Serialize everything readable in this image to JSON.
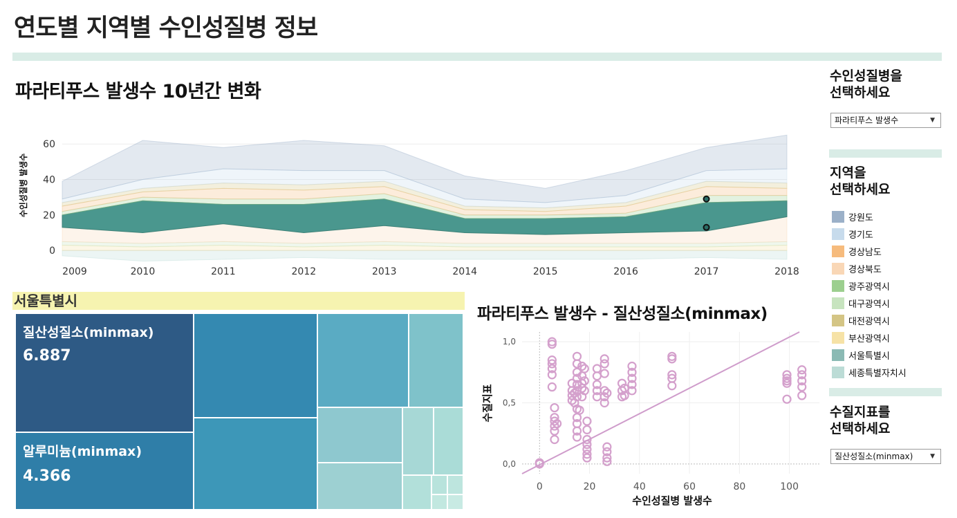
{
  "dashboard": {
    "title": "연도별 지역별 수인성질병 정보"
  },
  "area_chart": {
    "title": "파라티푸스 발생수 10년간 변화",
    "ylabel": "수인성질병 발생수"
  },
  "region_filter": {
    "label": "서울특별시"
  },
  "treemap": {
    "cells": [
      {
        "label": "질산성질소(minmax)",
        "value": "6.887"
      },
      {
        "label": "알루미늄(minmax)",
        "value": "4.366"
      }
    ]
  },
  "scatter": {
    "title": "파라티푸스 발생수 - 질산성질소(minmax)",
    "xlabel": "수인성질병 발생수",
    "ylabel": "수질지표"
  },
  "sidebar": {
    "disease_heading": "수인성질병을\n선택하세요",
    "disease_selected": "파라티푸스 발생수",
    "region_heading": "지역을\n선택하세요",
    "regions": [
      {
        "name": "강원도",
        "color": "#9bb0c8"
      },
      {
        "name": "경기도",
        "color": "#c7dbec"
      },
      {
        "name": "경상남도",
        "color": "#f6bb7d"
      },
      {
        "name": "경상북도",
        "color": "#f9d7b6"
      },
      {
        "name": "광주광역시",
        "color": "#9ccf8f"
      },
      {
        "name": "대구광역시",
        "color": "#c7e4bf"
      },
      {
        "name": "대전광역시",
        "color": "#d4c585"
      },
      {
        "name": "부산광역시",
        "color": "#f6e2a6"
      },
      {
        "name": "서울특별시",
        "color": "#8bbab4"
      },
      {
        "name": "세종특별자치시",
        "color": "#bcdcd6"
      }
    ],
    "indicator_heading": "수질지표를\n선택하세요",
    "indicator_selected": "질산성질소(minmax)"
  },
  "chart_data": [
    {
      "type": "area",
      "title": "파라티푸스 발생수 10년간 변화",
      "xlabel": "",
      "ylabel": "수인성질병 발생수",
      "x": [
        2009,
        2010,
        2011,
        2012,
        2013,
        2014,
        2015,
        2016,
        2017,
        2018
      ],
      "x_ticks": [
        "2009",
        "2010",
        "2011",
        "2012",
        "2013",
        "2014",
        "2015",
        "2016",
        "2017",
        "2018"
      ],
      "y_ticks": [
        "0",
        "20",
        "40",
        "60"
      ],
      "ylim": [
        -5,
        78
      ],
      "stacked": true,
      "grid": true,
      "highlight_series": "서울특별시",
      "series": [
        {
          "name": "세종특별자치시",
          "color": "#bcdcd6",
          "values": [
            -3,
            -6,
            -5,
            -4,
            -5,
            -5,
            -5,
            -5,
            -4,
            -5
          ]
        },
        {
          "name": "부산광역시",
          "color": "#f6e2a6",
          "values": [
            3,
            2,
            3,
            2,
            3,
            2,
            2,
            2,
            2,
            3
          ]
        },
        {
          "name": "대구광역시",
          "color": "#c7e4bf",
          "values": [
            2,
            2,
            2,
            2,
            2,
            2,
            2,
            2,
            2,
            2
          ]
        },
        {
          "name": "경상북도",
          "color": "#f9d7b6",
          "values": [
            8,
            6,
            10,
            6,
            9,
            6,
            5,
            6,
            7,
            14
          ]
        },
        {
          "name": "서울특별시",
          "color": "#4a978e",
          "values": [
            7,
            18,
            11,
            16,
            15,
            8,
            9,
            9,
            16,
            9
          ]
        },
        {
          "name": "광주광역시",
          "color": "#9ccf8f",
          "values": [
            2,
            2,
            3,
            3,
            3,
            2,
            2,
            2,
            4,
            3
          ]
        },
        {
          "name": "경상남도",
          "color": "#f6bb7d",
          "values": [
            3,
            3,
            6,
            5,
            4,
            3,
            2,
            4,
            5,
            4
          ]
        },
        {
          "name": "대전광역시",
          "color": "#d4c585",
          "values": [
            2,
            2,
            3,
            3,
            3,
            2,
            2,
            2,
            3,
            3
          ]
        },
        {
          "name": "경기도",
          "color": "#c7dbec",
          "values": [
            2,
            5,
            8,
            8,
            6,
            4,
            3,
            4,
            6,
            8
          ]
        },
        {
          "name": "강원도",
          "color": "#9bb0c8",
          "values": [
            10,
            22,
            12,
            17,
            14,
            13,
            8,
            14,
            13,
            19
          ]
        }
      ],
      "highlight_points": [
        {
          "x": 2017,
          "y": 29
        },
        {
          "x": 2017,
          "y": 13
        }
      ]
    },
    {
      "type": "treemap",
      "title": "서울특별시",
      "items": [
        {
          "name": "질산성질소(minmax)",
          "value": 6.887
        },
        {
          "name": "알루미늄(minmax)",
          "value": 4.366
        }
      ]
    },
    {
      "type": "scatter",
      "title": "파라티푸스 발생수 - 질산성질소(minmax)",
      "xlabel": "수인성질병 발생수",
      "ylabel": "수질지표",
      "xlim": [
        -7,
        112
      ],
      "ylim": [
        -0.08,
        1.08
      ],
      "x_ticks": [
        "0",
        "20",
        "40",
        "60",
        "80",
        "100"
      ],
      "y_ticks": [
        "0,0",
        "0,5",
        "1,0"
      ],
      "color": "#d4a0cc",
      "trendline": {
        "x": [
          -7,
          104
        ],
        "y": [
          -0.08,
          1.08
        ]
      },
      "points": [
        [
          0,
          0.0
        ],
        [
          0,
          0.01
        ],
        [
          5,
          1.0
        ],
        [
          5,
          0.98
        ],
        [
          5,
          0.85
        ],
        [
          5,
          0.82
        ],
        [
          5,
          0.78
        ],
        [
          5,
          0.73
        ],
        [
          5,
          0.63
        ],
        [
          6,
          0.46
        ],
        [
          6,
          0.38
        ],
        [
          6,
          0.35
        ],
        [
          6,
          0.31
        ],
        [
          6,
          0.27
        ],
        [
          6,
          0.2
        ],
        [
          7,
          0.33
        ],
        [
          13,
          0.66
        ],
        [
          13,
          0.6
        ],
        [
          13,
          0.56
        ],
        [
          13,
          0.52
        ],
        [
          14,
          0.58
        ],
        [
          14,
          0.5
        ],
        [
          15,
          0.88
        ],
        [
          15,
          0.82
        ],
        [
          15,
          0.75
        ],
        [
          15,
          0.7
        ],
        [
          15,
          0.65
        ],
        [
          15,
          0.6
        ],
        [
          15,
          0.55
        ],
        [
          15,
          0.45
        ],
        [
          15,
          0.38
        ],
        [
          15,
          0.33
        ],
        [
          15,
          0.27
        ],
        [
          15,
          0.22
        ],
        [
          16,
          0.44
        ],
        [
          17,
          0.8
        ],
        [
          17,
          0.72
        ],
        [
          17,
          0.66
        ],
        [
          17,
          0.62
        ],
        [
          17,
          0.55
        ],
        [
          18,
          0.78
        ],
        [
          18,
          0.68
        ],
        [
          18,
          0.6
        ],
        [
          19,
          0.35
        ],
        [
          19,
          0.28
        ],
        [
          19,
          0.2
        ],
        [
          19,
          0.16
        ],
        [
          19,
          0.12
        ],
        [
          19,
          0.08
        ],
        [
          19,
          0.05
        ],
        [
          23,
          0.78
        ],
        [
          23,
          0.72
        ],
        [
          23,
          0.65
        ],
        [
          23,
          0.6
        ],
        [
          23,
          0.55
        ],
        [
          26,
          0.86
        ],
        [
          26,
          0.82
        ],
        [
          26,
          0.74
        ],
        [
          26,
          0.6
        ],
        [
          26,
          0.55
        ],
        [
          26,
          0.5
        ],
        [
          27,
          0.58
        ],
        [
          27,
          0.14
        ],
        [
          27,
          0.1
        ],
        [
          27,
          0.05
        ],
        [
          27,
          0.02
        ],
        [
          33,
          0.66
        ],
        [
          33,
          0.6
        ],
        [
          33,
          0.55
        ],
        [
          34,
          0.62
        ],
        [
          34,
          0.56
        ],
        [
          37,
          0.8
        ],
        [
          37,
          0.75
        ],
        [
          37,
          0.7
        ],
        [
          37,
          0.65
        ],
        [
          37,
          0.6
        ],
        [
          53,
          0.88
        ],
        [
          53,
          0.86
        ],
        [
          53,
          0.73
        ],
        [
          53,
          0.7
        ],
        [
          53,
          0.64
        ],
        [
          99,
          0.73
        ],
        [
          99,
          0.7
        ],
        [
          99,
          0.68
        ],
        [
          99,
          0.66
        ],
        [
          99,
          0.53
        ],
        [
          105,
          0.77
        ],
        [
          105,
          0.73
        ],
        [
          105,
          0.68
        ],
        [
          105,
          0.63
        ],
        [
          105,
          0.56
        ]
      ]
    }
  ]
}
